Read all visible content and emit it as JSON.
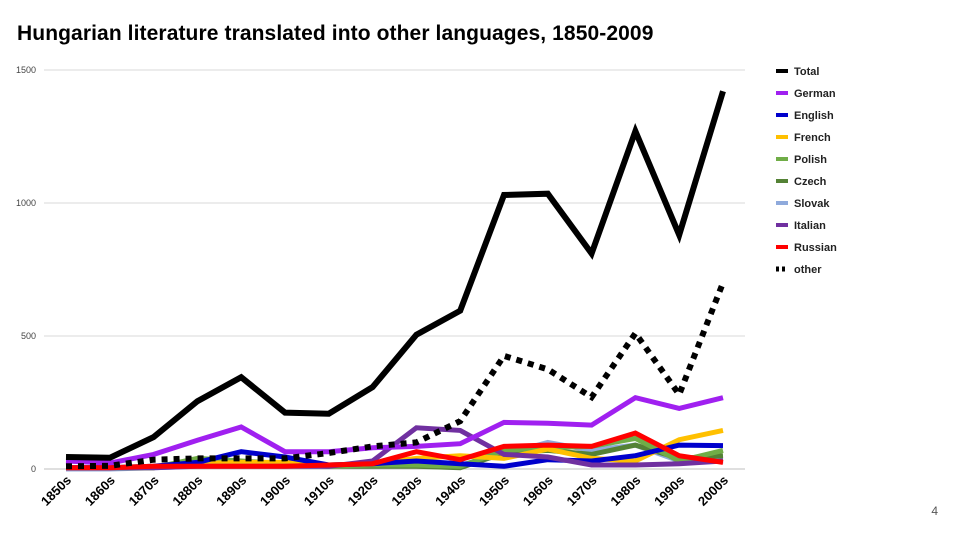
{
  "slide": {
    "title": "Hungarian literature translated into other languages, 1850-2009",
    "page_number": "4"
  },
  "chart_data": {
    "type": "line",
    "title": "Hungarian literature translated into other languages, 1850-2009",
    "xlabel": "",
    "ylabel": "",
    "ylim": [
      0,
      1500
    ],
    "yticks": [
      0,
      500,
      1000,
      1500
    ],
    "grid": true,
    "legend_position": "right",
    "categories": [
      "1850s",
      "1860s",
      "1870s",
      "1880s",
      "1890s",
      "1900s",
      "1910s",
      "1920s",
      "1930s",
      "1940s",
      "1950s",
      "1960s",
      "1970s",
      "1980s",
      "1990s",
      "2000s"
    ],
    "series": [
      {
        "name": "Total",
        "color": "#000000",
        "style": "solid",
        "width": 6,
        "values": [
          45,
          42,
          120,
          255,
          345,
          212,
          208,
          308,
          505,
          595,
          1030,
          1035,
          810,
          1270,
          880,
          1420
        ]
      },
      {
        "name": "German",
        "color": "#a020f0",
        "style": "solid",
        "width": 5,
        "values": [
          30,
          22,
          55,
          108,
          158,
          65,
          65,
          80,
          85,
          95,
          175,
          172,
          165,
          268,
          228,
          268
        ]
      },
      {
        "name": "English",
        "color": "#0000cc",
        "style": "solid",
        "width": 5,
        "values": [
          5,
          5,
          10,
          25,
          65,
          45,
          15,
          20,
          30,
          20,
          10,
          35,
          30,
          50,
          90,
          88
        ]
      },
      {
        "name": "French",
        "color": "#ffc000",
        "style": "solid",
        "width": 5,
        "values": [
          5,
          5,
          10,
          20,
          25,
          25,
          15,
          20,
          40,
          50,
          40,
          75,
          40,
          30,
          110,
          145
        ]
      },
      {
        "name": "Polish",
        "color": "#70ad47",
        "style": "solid",
        "width": 5,
        "values": [
          5,
          5,
          5,
          40,
          30,
          20,
          10,
          15,
          15,
          10,
          70,
          80,
          85,
          115,
          30,
          70
        ]
      },
      {
        "name": "Czech",
        "color": "#548235",
        "style": "solid",
        "width": 5,
        "values": [
          5,
          5,
          5,
          35,
          25,
          15,
          10,
          10,
          10,
          5,
          60,
          70,
          55,
          90,
          40,
          50
        ]
      },
      {
        "name": "Slovak",
        "color": "#8faadc",
        "style": "solid",
        "width": 5,
        "values": [
          0,
          0,
          5,
          10,
          15,
          10,
          10,
          10,
          15,
          15,
          55,
          100,
          70,
          90,
          30,
          35
        ]
      },
      {
        "name": "Italian",
        "color": "#7030a0",
        "style": "solid",
        "width": 5,
        "values": [
          5,
          5,
          5,
          10,
          10,
          10,
          10,
          30,
          155,
          145,
          55,
          45,
          15,
          15,
          20,
          30
        ]
      },
      {
        "name": "Russian",
        "color": "#ff0000",
        "style": "solid",
        "width": 5,
        "values": [
          5,
          5,
          10,
          10,
          10,
          10,
          15,
          20,
          65,
          35,
          85,
          90,
          85,
          135,
          50,
          25
        ]
      },
      {
        "name": "other",
        "color": "#000000",
        "style": "dotted",
        "width": 6,
        "values": [
          10,
          12,
          35,
          40,
          40,
          40,
          60,
          85,
          100,
          180,
          425,
          375,
          270,
          510,
          280,
          700
        ]
      }
    ]
  }
}
